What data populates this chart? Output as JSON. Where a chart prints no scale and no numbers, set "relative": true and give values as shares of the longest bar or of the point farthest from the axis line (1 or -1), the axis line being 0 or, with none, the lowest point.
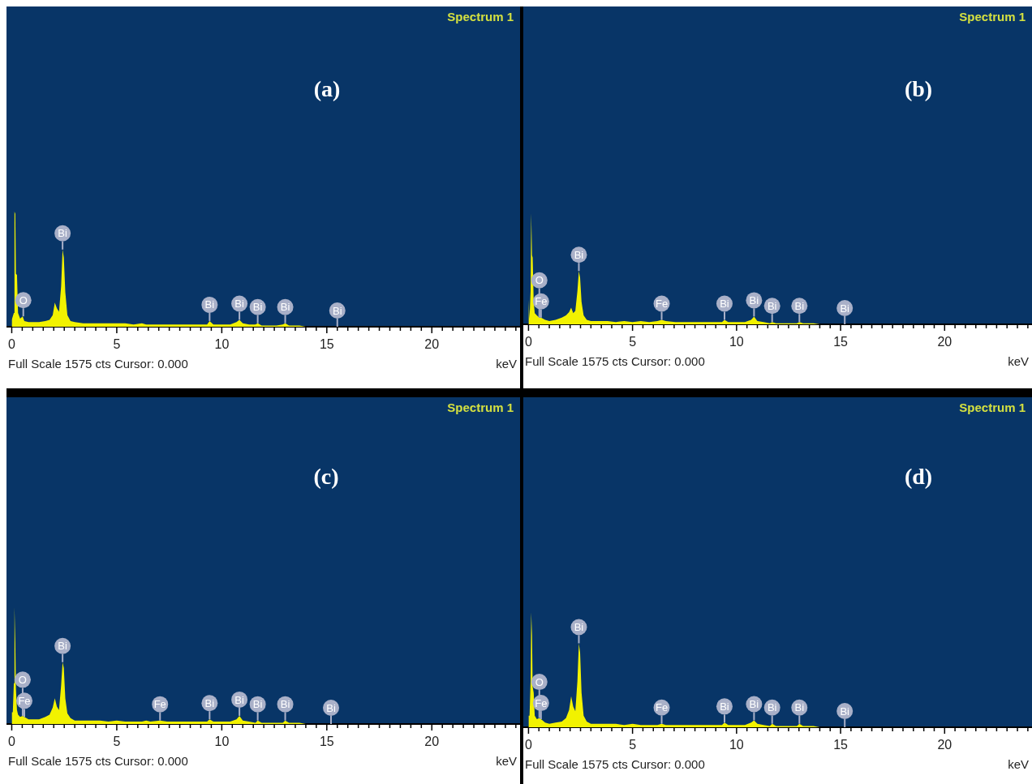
{
  "chart_data": [
    {
      "type": "area",
      "title": "(a)",
      "subtitle": "Spectrum 1",
      "xlabel": "keV",
      "relative": true,
      "color": "#f2f200",
      "xlim": [
        -0.25,
        24.2
      ],
      "xticks": [
        0,
        {
          "value": 0.5,
          "label": null
        },
        {
          "value": 1,
          "label": null
        },
        {
          "value": 1.5,
          "label": null
        },
        {
          "value": 2,
          "label": null
        },
        {
          "value": 2.5,
          "label": null
        },
        {
          "value": 3,
          "label": null
        },
        {
          "value": 3.5,
          "label": null
        },
        {
          "value": 4,
          "label": null
        },
        {
          "value": 4.5,
          "label": null
        },
        5,
        {
          "value": 5.5,
          "label": null
        },
        {
          "value": 6,
          "label": null
        },
        {
          "value": 6.5,
          "label": null
        },
        {
          "value": 7,
          "label": null
        },
        {
          "value": 7.5,
          "label": null
        },
        {
          "value": 8,
          "label": null
        },
        {
          "value": 8.5,
          "label": null
        },
        {
          "value": 9,
          "label": null
        },
        {
          "value": 9.5,
          "label": null
        },
        10,
        {
          "value": 10.5,
          "label": null
        },
        {
          "value": 11,
          "label": null
        },
        {
          "value": 11.5,
          "label": null
        },
        {
          "value": 12,
          "label": null
        },
        {
          "value": 12.5,
          "label": null
        },
        {
          "value": 13,
          "label": null
        },
        {
          "value": 13.5,
          "label": null
        },
        {
          "value": 14,
          "label": null
        },
        {
          "value": 14.5,
          "label": null
        },
        15,
        {
          "value": 15.5,
          "label": null
        },
        {
          "value": 16,
          "label": null
        },
        {
          "value": 16.5,
          "label": null
        },
        {
          "value": 17,
          "label": null
        },
        {
          "value": 17.5,
          "label": null
        },
        {
          "value": 18,
          "label": null
        },
        {
          "value": 18.5,
          "label": null
        },
        {
          "value": 19,
          "label": null
        },
        {
          "value": 19.5,
          "label": null
        },
        20,
        {
          "value": 20.5,
          "label": null
        },
        {
          "value": 21,
          "label": null
        },
        {
          "value": 21.5,
          "label": null
        },
        {
          "value": 22,
          "label": null
        },
        {
          "value": 22.5,
          "label": null
        },
        {
          "value": 23,
          "label": null
        },
        {
          "value": 23.5,
          "label": null
        },
        {
          "value": 24,
          "label": null
        }
      ],
      "x": [
        0,
        0.05,
        0.1,
        0.13,
        0.17,
        0.2,
        0.25,
        0.3,
        0.4,
        0.52,
        0.6,
        0.8,
        1,
        1.3,
        1.6,
        1.8,
        1.95,
        2.05,
        2.15,
        2.25,
        2.35,
        2.42,
        2.48,
        2.55,
        2.65,
        2.8,
        3,
        3.4,
        3.8,
        4.2,
        4.6,
        5,
        5.4,
        5.8,
        6.2,
        6.4,
        6.6,
        7.06,
        7.4,
        7.8,
        8.2,
        8.6,
        9,
        9.3,
        9.42,
        9.6,
        10,
        10.4,
        10.7,
        10.84,
        11,
        11.3,
        11.6,
        11.71,
        11.9,
        12.2,
        12.6,
        12.9,
        13.02,
        13.2,
        13.5,
        13.7,
        14,
        15.2,
        15.5
      ],
      "values": [
        0.06,
        0.09,
        0.12,
        1,
        0.98,
        0.46,
        0.45,
        0.12,
        0.07,
        0.09,
        0.05,
        0.04,
        0.04,
        0.04,
        0.05,
        0.06,
        0.1,
        0.21,
        0.16,
        0.13,
        0.35,
        0.67,
        0.6,
        0.3,
        0.1,
        0.05,
        0.04,
        0.03,
        0.03,
        0.03,
        0.03,
        0.03,
        0.03,
        0.02,
        0.03,
        0.02,
        0.02,
        0.02,
        0.02,
        0.02,
        0.02,
        0.02,
        0.02,
        0.02,
        0.05,
        0.02,
        0.02,
        0.02,
        0.04,
        0.06,
        0.03,
        0.02,
        0.02,
        0.03,
        0.01,
        0.01,
        0.01,
        0.02,
        0.03,
        0.01,
        0.01,
        0.01,
        0,
        0,
        0
      ],
      "annotations": [
        "Full Scale 1575 cts Cursor: 0.000",
        {
          "text": "O",
          "x": 0.55,
          "y": 0.09
        },
        {
          "text": "Bi",
          "x": 2.42,
          "y": 0.67
        },
        {
          "text": "Bi",
          "x": 9.42,
          "y": 0.05
        },
        {
          "text": "Bi",
          "x": 10.84,
          "y": 0.06
        },
        {
          "text": "Bi",
          "x": 11.71,
          "y": 0.03
        },
        {
          "text": "Bi",
          "x": 13.02,
          "y": 0.03
        },
        {
          "text": "Bi",
          "x": 15.5,
          "y": 0
        }
      ]
    },
    {
      "type": "area",
      "title": "(b)",
      "subtitle": "Spectrum 1",
      "xlabel": "keV",
      "relative": true,
      "color": "#f2f200",
      "xlim": [
        -0.25,
        24.2
      ],
      "xticks": [
        0,
        {
          "value": 0.5,
          "label": null
        },
        {
          "value": 1,
          "label": null
        },
        {
          "value": 1.5,
          "label": null
        },
        {
          "value": 2,
          "label": null
        },
        {
          "value": 2.5,
          "label": null
        },
        {
          "value": 3,
          "label": null
        },
        {
          "value": 3.5,
          "label": null
        },
        {
          "value": 4,
          "label": null
        },
        {
          "value": 4.5,
          "label": null
        },
        5,
        {
          "value": 5.5,
          "label": null
        },
        {
          "value": 6,
          "label": null
        },
        {
          "value": 6.5,
          "label": null
        },
        {
          "value": 7,
          "label": null
        },
        {
          "value": 7.5,
          "label": null
        },
        {
          "value": 8,
          "label": null
        },
        {
          "value": 8.5,
          "label": null
        },
        {
          "value": 9,
          "label": null
        },
        {
          "value": 9.5,
          "label": null
        },
        10,
        {
          "value": 10.5,
          "label": null
        },
        {
          "value": 11,
          "label": null
        },
        {
          "value": 11.5,
          "label": null
        },
        {
          "value": 12,
          "label": null
        },
        {
          "value": 12.5,
          "label": null
        },
        {
          "value": 13,
          "label": null
        },
        {
          "value": 13.5,
          "label": null
        },
        {
          "value": 14,
          "label": null
        },
        {
          "value": 14.5,
          "label": null
        },
        15,
        {
          "value": 15.5,
          "label": null
        },
        {
          "value": 16,
          "label": null
        },
        {
          "value": 16.5,
          "label": null
        },
        {
          "value": 17,
          "label": null
        },
        {
          "value": 17.5,
          "label": null
        },
        {
          "value": 18,
          "label": null
        },
        {
          "value": 18.5,
          "label": null
        },
        {
          "value": 19,
          "label": null
        },
        {
          "value": 19.5,
          "label": null
        },
        20,
        {
          "value": 20.5,
          "label": null
        },
        {
          "value": 21,
          "label": null
        },
        {
          "value": 21.5,
          "label": null
        },
        {
          "value": 22,
          "label": null
        },
        {
          "value": 22.5,
          "label": null
        },
        {
          "value": 23,
          "label": null
        },
        {
          "value": 23.5,
          "label": null
        },
        {
          "value": 24,
          "label": null
        }
      ],
      "x": [
        0,
        0.05,
        0.1,
        0.13,
        0.17,
        0.2,
        0.25,
        0.3,
        0.4,
        0.52,
        0.6,
        0.8,
        1,
        1.3,
        1.6,
        1.8,
        1.95,
        2.05,
        2.15,
        2.25,
        2.35,
        2.42,
        2.48,
        2.55,
        2.65,
        2.8,
        3,
        3.4,
        3.8,
        4.2,
        4.6,
        5,
        5.4,
        5.8,
        6.2,
        6.4,
        6.6,
        7.06,
        7.4,
        7.8,
        8.2,
        8.6,
        9,
        9.3,
        9.42,
        9.6,
        10,
        10.4,
        10.7,
        10.84,
        11,
        11.3,
        11.6,
        11.71,
        11.9,
        12.2,
        12.6,
        12.9,
        13.02,
        13.2,
        13.5,
        13.7,
        14,
        15.2,
        15.5
      ],
      "values": [
        0.22,
        0.05,
        0.3,
        1,
        0.62,
        0.6,
        0.2,
        0.1,
        0.08,
        0.06,
        0.06,
        0.04,
        0.03,
        0.04,
        0.06,
        0.08,
        0.11,
        0.15,
        0.1,
        0.12,
        0.3,
        0.48,
        0.42,
        0.2,
        0.08,
        0.04,
        0.03,
        0.03,
        0.03,
        0.02,
        0.03,
        0.02,
        0.03,
        0.02,
        0.03,
        0.04,
        0.03,
        0.02,
        0.02,
        0.02,
        0.02,
        0.02,
        0.02,
        0.02,
        0.04,
        0.02,
        0.02,
        0.02,
        0.04,
        0.07,
        0.03,
        0.02,
        0.01,
        0.02,
        0.01,
        0.01,
        0.01,
        0.01,
        0.02,
        0.01,
        0.01,
        0.01,
        0,
        0,
        0
      ],
      "annotations": [
        "Full Scale 1575 cts Cursor: 0.000",
        {
          "text": "Fe",
          "x": 0.6,
          "y": 0.06
        },
        {
          "text": "O",
          "x": 0.52,
          "y": 0.06
        },
        {
          "text": "Bi",
          "x": 2.42,
          "y": 0.48
        },
        {
          "text": "Fe",
          "x": 6.4,
          "y": 0.04
        },
        {
          "text": "Bi",
          "x": 9.42,
          "y": 0.04
        },
        {
          "text": "Bi",
          "x": 10.84,
          "y": 0.07
        },
        {
          "text": "Bi",
          "x": 11.71,
          "y": 0.02
        },
        {
          "text": "Bi",
          "x": 13.02,
          "y": 0.02
        },
        {
          "text": "Bi",
          "x": 15.2,
          "y": 0
        }
      ]
    },
    {
      "type": "area",
      "title": "(c)",
      "subtitle": "Spectrum 1",
      "xlabel": "keV",
      "relative": true,
      "color": "#f2f200",
      "xlim": [
        -0.25,
        24.2
      ],
      "xticks": [
        0,
        {
          "value": 0.5,
          "label": null
        },
        {
          "value": 1,
          "label": null
        },
        {
          "value": 1.5,
          "label": null
        },
        {
          "value": 2,
          "label": null
        },
        {
          "value": 2.5,
          "label": null
        },
        {
          "value": 3,
          "label": null
        },
        {
          "value": 3.5,
          "label": null
        },
        {
          "value": 4,
          "label": null
        },
        {
          "value": 4.5,
          "label": null
        },
        5,
        {
          "value": 5.5,
          "label": null
        },
        {
          "value": 6,
          "label": null
        },
        {
          "value": 6.5,
          "label": null
        },
        {
          "value": 7,
          "label": null
        },
        {
          "value": 7.5,
          "label": null
        },
        {
          "value": 8,
          "label": null
        },
        {
          "value": 8.5,
          "label": null
        },
        {
          "value": 9,
          "label": null
        },
        {
          "value": 9.5,
          "label": null
        },
        10,
        {
          "value": 10.5,
          "label": null
        },
        {
          "value": 11,
          "label": null
        },
        {
          "value": 11.5,
          "label": null
        },
        {
          "value": 12,
          "label": null
        },
        {
          "value": 12.5,
          "label": null
        },
        {
          "value": 13,
          "label": null
        },
        {
          "value": 13.5,
          "label": null
        },
        {
          "value": 14,
          "label": null
        },
        {
          "value": 14.5,
          "label": null
        },
        15,
        {
          "value": 15.5,
          "label": null
        },
        {
          "value": 16,
          "label": null
        },
        {
          "value": 16.5,
          "label": null
        },
        {
          "value": 17,
          "label": null
        },
        {
          "value": 17.5,
          "label": null
        },
        {
          "value": 18,
          "label": null
        },
        {
          "value": 18.5,
          "label": null
        },
        {
          "value": 19,
          "label": null
        },
        {
          "value": 19.5,
          "label": null
        },
        20,
        {
          "value": 20.5,
          "label": null
        },
        {
          "value": 21,
          "label": null
        },
        {
          "value": 21.5,
          "label": null
        },
        {
          "value": 22,
          "label": null
        },
        {
          "value": 22.5,
          "label": null
        },
        {
          "value": 23,
          "label": null
        },
        {
          "value": 23.5,
          "label": null
        },
        {
          "value": 24,
          "label": null
        }
      ],
      "x": [
        0,
        0.05,
        0.1,
        0.13,
        0.17,
        0.2,
        0.25,
        0.3,
        0.4,
        0.52,
        0.6,
        0.8,
        1,
        1.3,
        1.6,
        1.8,
        1.95,
        2.05,
        2.15,
        2.25,
        2.35,
        2.42,
        2.48,
        2.55,
        2.65,
        2.8,
        3,
        3.4,
        3.8,
        4.2,
        4.6,
        5,
        5.4,
        5.8,
        6.2,
        6.4,
        6.6,
        7.06,
        7.4,
        7.8,
        8.2,
        8.6,
        9,
        9.3,
        9.42,
        9.6,
        10,
        10.4,
        10.7,
        10.84,
        11,
        11.3,
        11.6,
        11.71,
        11.9,
        12.2,
        12.6,
        12.9,
        13.02,
        13.2,
        13.5,
        13.7,
        14,
        15.2,
        15.5
      ],
      "values": [
        0.1,
        0.1,
        0.35,
        1,
        0.7,
        0.3,
        0.12,
        0.08,
        0.06,
        0.07,
        0.06,
        0.04,
        0.04,
        0.04,
        0.06,
        0.08,
        0.14,
        0.22,
        0.15,
        0.12,
        0.33,
        0.53,
        0.48,
        0.22,
        0.09,
        0.05,
        0.03,
        0.03,
        0.03,
        0.03,
        0.02,
        0.03,
        0.02,
        0.02,
        0.02,
        0.03,
        0.02,
        0.03,
        0.02,
        0.02,
        0.02,
        0.02,
        0.02,
        0.02,
        0.04,
        0.02,
        0.02,
        0.02,
        0.04,
        0.07,
        0.03,
        0.02,
        0.01,
        0.03,
        0.01,
        0.01,
        0.01,
        0.01,
        0.03,
        0.01,
        0.01,
        0.01,
        0,
        0,
        0
      ],
      "annotations": [
        "Full Scale 1575 cts Cursor: 0.000",
        {
          "text": "Fe",
          "x": 0.6,
          "y": 0.06
        },
        {
          "text": "O",
          "x": 0.52,
          "y": 0.07
        },
        {
          "text": "Bi",
          "x": 2.42,
          "y": 0.53
        },
        {
          "text": "Fe",
          "x": 7.06,
          "y": 0.03
        },
        {
          "text": "Bi",
          "x": 9.42,
          "y": 0.04
        },
        {
          "text": "Bi",
          "x": 10.84,
          "y": 0.07
        },
        {
          "text": "Bi",
          "x": 11.71,
          "y": 0.03
        },
        {
          "text": "Bi",
          "x": 13.02,
          "y": 0.03
        },
        {
          "text": "Bi",
          "x": 15.2,
          "y": 0
        }
      ]
    },
    {
      "type": "area",
      "title": "(d)",
      "subtitle": "Spectrum 1",
      "xlabel": "keV",
      "relative": true,
      "color": "#f2f200",
      "xlim": [
        -0.25,
        24.2
      ],
      "xticks": [
        0,
        {
          "value": 0.5,
          "label": null
        },
        {
          "value": 1,
          "label": null
        },
        {
          "value": 1.5,
          "label": null
        },
        {
          "value": 2,
          "label": null
        },
        {
          "value": 2.5,
          "label": null
        },
        {
          "value": 3,
          "label": null
        },
        {
          "value": 3.5,
          "label": null
        },
        {
          "value": 4,
          "label": null
        },
        {
          "value": 4.5,
          "label": null
        },
        5,
        {
          "value": 5.5,
          "label": null
        },
        {
          "value": 6,
          "label": null
        },
        {
          "value": 6.5,
          "label": null
        },
        {
          "value": 7,
          "label": null
        },
        {
          "value": 7.5,
          "label": null
        },
        {
          "value": 8,
          "label": null
        },
        {
          "value": 8.5,
          "label": null
        },
        {
          "value": 9,
          "label": null
        },
        {
          "value": 9.5,
          "label": null
        },
        10,
        {
          "value": 10.5,
          "label": null
        },
        {
          "value": 11,
          "label": null
        },
        {
          "value": 11.5,
          "label": null
        },
        {
          "value": 12,
          "label": null
        },
        {
          "value": 12.5,
          "label": null
        },
        {
          "value": 13,
          "label": null
        },
        {
          "value": 13.5,
          "label": null
        },
        {
          "value": 14,
          "label": null
        },
        {
          "value": 14.5,
          "label": null
        },
        15,
        {
          "value": 15.5,
          "label": null
        },
        {
          "value": 16,
          "label": null
        },
        {
          "value": 16.5,
          "label": null
        },
        {
          "value": 17,
          "label": null
        },
        {
          "value": 17.5,
          "label": null
        },
        {
          "value": 18,
          "label": null
        },
        {
          "value": 18.5,
          "label": null
        },
        {
          "value": 19,
          "label": null
        },
        {
          "value": 19.5,
          "label": null
        },
        20,
        {
          "value": 20.5,
          "label": null
        },
        {
          "value": 21,
          "label": null
        },
        {
          "value": 21.5,
          "label": null
        },
        {
          "value": 22,
          "label": null
        },
        {
          "value": 22.5,
          "label": null
        },
        {
          "value": 23,
          "label": null
        },
        {
          "value": 23.5,
          "label": null
        },
        {
          "value": 24,
          "label": null
        }
      ],
      "x": [
        0,
        0.05,
        0.1,
        0.13,
        0.17,
        0.2,
        0.25,
        0.3,
        0.4,
        0.52,
        0.6,
        0.8,
        1,
        1.3,
        1.6,
        1.8,
        1.95,
        2.05,
        2.15,
        2.25,
        2.35,
        2.42,
        2.48,
        2.55,
        2.65,
        2.8,
        3,
        3.4,
        3.8,
        4.2,
        4.6,
        5,
        5.4,
        5.8,
        6.2,
        6.4,
        6.6,
        7.06,
        7.4,
        7.8,
        8.2,
        8.6,
        9,
        9.3,
        9.42,
        9.6,
        10,
        10.4,
        10.7,
        10.84,
        11,
        11.3,
        11.6,
        11.71,
        11.9,
        12.2,
        12.6,
        12.9,
        13.02,
        13.2,
        13.5,
        13.7,
        14,
        15.2,
        15.5
      ],
      "values": [
        0.1,
        0.1,
        0.4,
        1,
        0.8,
        0.35,
        0.3,
        0.1,
        0.07,
        0.08,
        0.07,
        0.04,
        0.03,
        0.04,
        0.05,
        0.08,
        0.15,
        0.27,
        0.18,
        0.14,
        0.4,
        0.73,
        0.65,
        0.3,
        0.1,
        0.05,
        0.03,
        0.03,
        0.03,
        0.03,
        0.02,
        0.03,
        0.02,
        0.02,
        0.02,
        0.03,
        0.02,
        0.02,
        0.02,
        0.02,
        0.02,
        0.02,
        0.02,
        0.02,
        0.04,
        0.02,
        0.02,
        0.02,
        0.04,
        0.06,
        0.03,
        0.02,
        0.01,
        0.03,
        0.01,
        0.01,
        0.01,
        0.01,
        0.03,
        0.01,
        0.01,
        0.01,
        0,
        0,
        0
      ],
      "annotations": [
        "Full Scale 1575 cts Cursor: 0.000",
        {
          "text": "Fe",
          "x": 0.6,
          "y": 0.07
        },
        {
          "text": "O",
          "x": 0.52,
          "y": 0.08
        },
        {
          "text": "Bi",
          "x": 2.42,
          "y": 0.73
        },
        {
          "text": "Fe",
          "x": 6.4,
          "y": 0.03
        },
        {
          "text": "Bi",
          "x": 9.42,
          "y": 0.04
        },
        {
          "text": "Bi",
          "x": 10.84,
          "y": 0.06
        },
        {
          "text": "Bi",
          "x": 11.71,
          "y": 0.03
        },
        {
          "text": "Bi",
          "x": 13.02,
          "y": 0.03
        },
        {
          "text": "Bi",
          "x": 15.2,
          "y": 0
        }
      ]
    }
  ]
}
